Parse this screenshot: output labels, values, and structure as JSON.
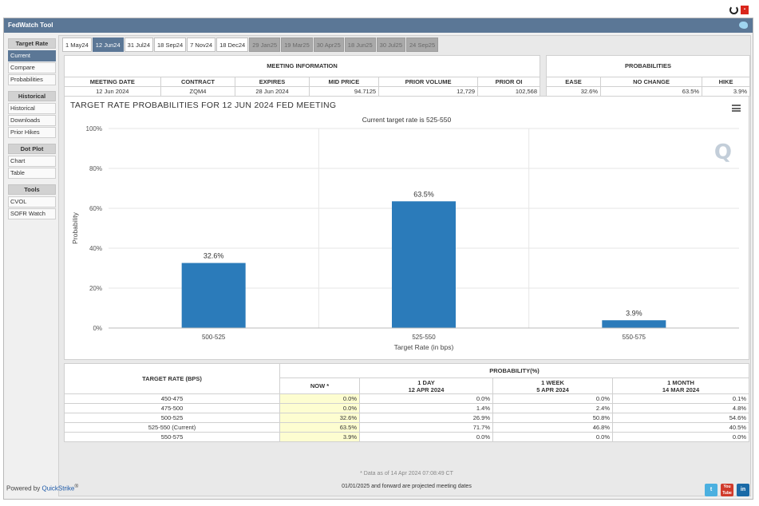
{
  "app_title": "FedWatch Tool",
  "sidebar": {
    "sections": [
      {
        "heading": "Target Rate",
        "items": [
          "Current",
          "Compare",
          "Probabilities"
        ]
      },
      {
        "heading": "Historical",
        "items": [
          "Historical",
          "Downloads",
          "Prior Hikes"
        ]
      },
      {
        "heading": "Dot Plot",
        "items": [
          "Chart",
          "Table"
        ]
      },
      {
        "heading": "Tools",
        "items": [
          "CVOL",
          "SOFR Watch"
        ]
      }
    ],
    "active_item": "Current"
  },
  "tabs": [
    "1 May24",
    "12 Jun24",
    "31 Jul24",
    "18 Sep24",
    "7 Nov24",
    "18 Dec24",
    "29 Jan25",
    "19 Mar25",
    "30 Apr25",
    "18 Jun25",
    "30 Jul25",
    "24 Sep25"
  ],
  "active_tab": "12 Jun24",
  "meeting_info": {
    "caption": "MEETING INFORMATION",
    "headers": [
      "MEETING DATE",
      "CONTRACT",
      "EXPIRES",
      "MID PRICE",
      "PRIOR VOLUME",
      "PRIOR OI"
    ],
    "values": [
      "12 Jun 2024",
      "ZQM4",
      "28 Jun 2024",
      "94.7125",
      "12,729",
      "102,568"
    ]
  },
  "probabilities": {
    "caption": "PROBABILITIES",
    "headers": [
      "EASE",
      "NO CHANGE",
      "HIKE"
    ],
    "values": [
      "32.6%",
      "63.5%",
      "3.9%"
    ]
  },
  "chart_data": {
    "type": "bar",
    "title": "TARGET RATE PROBABILITIES FOR 12 JUN 2024 FED MEETING",
    "subtitle": "Current target rate is 525-550",
    "categories": [
      "500-525",
      "525-550",
      "550-575"
    ],
    "values": [
      32.6,
      63.5,
      3.9
    ],
    "value_labels": [
      "32.6%",
      "63.5%",
      "3.9%"
    ],
    "xlabel": "Target Rate (in bps)",
    "ylabel": "Probability",
    "ylim": [
      0,
      100
    ],
    "yticks": [
      "0%",
      "20%",
      "40%",
      "60%",
      "80%",
      "100%"
    ],
    "ytick_values": [
      0,
      20,
      40,
      60,
      80,
      100
    ],
    "grid": true,
    "bar_color": "#2b7bba"
  },
  "bottom_table": {
    "col_target": "TARGET RATE (BPS)",
    "col_prob": "PROBABILITY(%)",
    "col_now": "NOW *",
    "col_1day": "1 DAY",
    "col_1day_date": "12 APR 2024",
    "col_1week": "1 WEEK",
    "col_1week_date": "5 APR 2024",
    "col_1month": "1 MONTH",
    "col_1month_date": "14 MAR 2024",
    "rows": [
      {
        "rate": "450-475",
        "now": "0.0%",
        "day": "0.0%",
        "week": "0.0%",
        "month": "0.1%"
      },
      {
        "rate": "475-500",
        "now": "0.0%",
        "day": "1.4%",
        "week": "2.4%",
        "month": "4.8%"
      },
      {
        "rate": "500-525",
        "now": "32.6%",
        "day": "26.9%",
        "week": "50.8%",
        "month": "54.6%"
      },
      {
        "rate": "525-550 (Current)",
        "now": "63.5%",
        "day": "71.7%",
        "week": "46.8%",
        "month": "40.5%"
      },
      {
        "rate": "550-575",
        "now": "3.9%",
        "day": "0.0%",
        "week": "0.0%",
        "month": "0.0%"
      }
    ]
  },
  "data_note": "* Data as of 14 Apr 2024 07:08:49 CT",
  "projection_note": "01/01/2025 and forward are projected meeting dates",
  "footer": {
    "powered_by": "Powered by",
    "brand": "QuickStrike",
    "reg": "®"
  },
  "logo_letter": "Q",
  "social": {
    "twitter": "t",
    "youtube": "You Tube",
    "linkedin": "in"
  }
}
